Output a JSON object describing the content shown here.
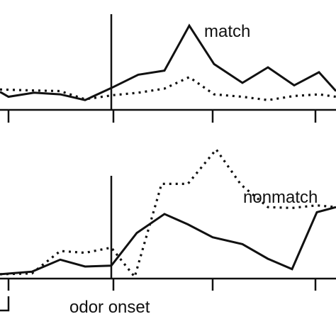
{
  "chart_data": [
    {
      "type": "line",
      "series": [
        {
          "name": "match",
          "style": "solid",
          "x": [
            0,
            12,
            48,
            85,
            120,
            160,
            195,
            232,
            267,
            302,
            342,
            378,
            415,
            450,
            474
          ],
          "y": [
            2.2,
            1.6,
            2.1,
            1.9,
            1.2,
            2.8,
            4.3,
            4.8,
            10.3,
            5.6,
            3.3,
            5.2,
            3.0,
            4.6,
            2.3
          ]
        },
        {
          "name": "",
          "style": "dotted",
          "x": [
            0,
            35,
            85,
            120,
            160,
            195,
            232,
            267,
            302,
            342,
            378,
            415,
            450,
            474
          ],
          "y": [
            2.5,
            2.4,
            2.3,
            1.3,
            1.8,
            2.1,
            2.6,
            4.0,
            1.9,
            1.6,
            1.2,
            1.7,
            1.9,
            1.6
          ]
        }
      ],
      "series_label": "match",
      "xlim": [
        0,
        474
      ],
      "ylim": [
        0,
        13
      ],
      "xticks": [
        12,
        160,
        300,
        445
      ],
      "vline_x": 157
    },
    {
      "type": "line",
      "series": [
        {
          "name": "",
          "style": "solid",
          "x": [
            0,
            45,
            85,
            120,
            157,
            193,
            232,
            265,
            300,
            342,
            378,
            412,
            447,
            474
          ],
          "y": [
            0.5,
            0.8,
            2.2,
            1.4,
            1.5,
            5.3,
            7.5,
            6.3,
            4.8,
            4.0,
            2.3,
            1.1,
            7.7,
            8.3
          ]
        },
        {
          "name": "nonmatch",
          "style": "dotted",
          "x": [
            0,
            45,
            85,
            120,
            157,
            190,
            228,
            265,
            305,
            340,
            378,
            412,
            447,
            474
          ],
          "y": [
            0.5,
            0.6,
            3.2,
            3.0,
            3.6,
            0.2,
            11.0,
            11.0,
            15.0,
            10.9,
            8.3,
            8.2,
            8.5,
            8.3
          ]
        }
      ],
      "series_label": "nonmatch",
      "xlim": [
        0,
        474
      ],
      "ylim": [
        0,
        20
      ],
      "xticks": [
        12,
        160,
        300,
        445
      ],
      "vline_x": 157,
      "annotation": "odor onset"
    }
  ]
}
